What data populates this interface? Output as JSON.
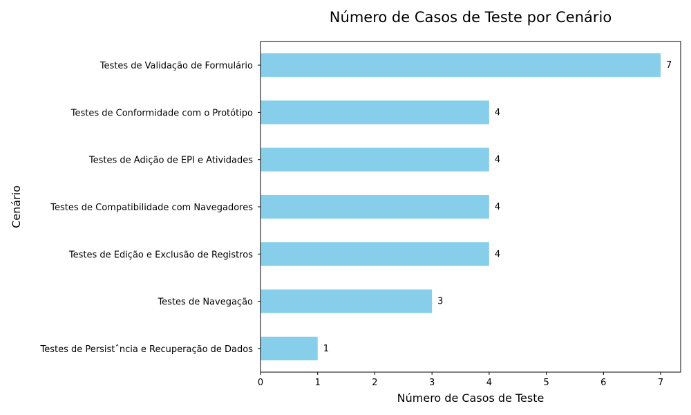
{
  "chart_data": {
    "type": "bar",
    "orientation": "horizontal",
    "title": "Número de Casos de Teste por Cenário",
    "xlabel": "Número de Casos de Teste",
    "ylabel": "Cenário",
    "categories": [
      "Testes de Validação de Formulário",
      "Testes de Conformidade com o Protótipo",
      "Testes de Adição de EPI e Atividades",
      "Testes de Compatibilidade com Navegadores",
      "Testes de Edição e Exclusão de Registros",
      "Testes de Navegação",
      "Testes de Persistˆncia e Recuperação de Dados"
    ],
    "values": [
      7,
      4,
      4,
      4,
      4,
      3,
      1
    ],
    "xticks": [
      "0",
      "1",
      "2",
      "3",
      "4",
      "5",
      "6",
      "7"
    ],
    "xlim": [
      0,
      7.35
    ],
    "grid": false,
    "bar_color": "#87ceeb",
    "data_labels": true
  }
}
